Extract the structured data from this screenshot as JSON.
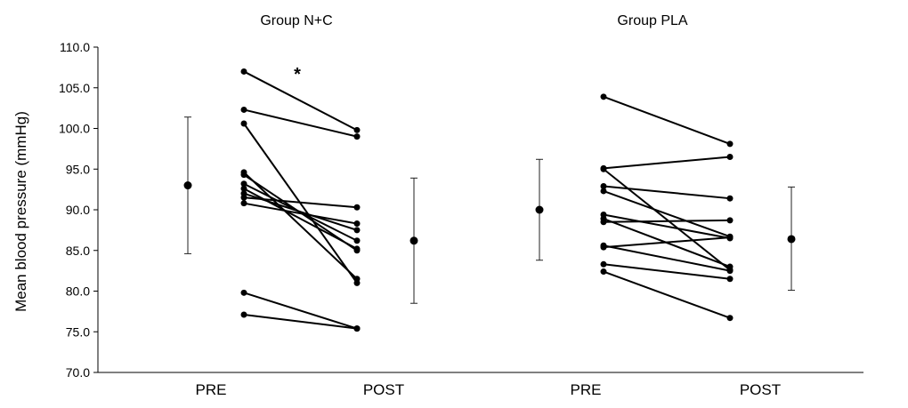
{
  "chart_data": {
    "type": "scatter",
    "subtype": "paired-individual-lines-with-mean-sd",
    "ylabel": "Mean blood pressure (mmHg)",
    "ylim": [
      70.0,
      110.0
    ],
    "yticks": [
      "70.0",
      "75.0",
      "80.0",
      "85.0",
      "90.0",
      "95.0",
      "100.0",
      "105.0",
      "110.0"
    ],
    "grid": false,
    "groups": [
      {
        "title": "Group N+C",
        "categories": [
          "PRE",
          "POST"
        ],
        "annotation": "*",
        "mean_pre": {
          "mean": 93.0,
          "upper": 101.4,
          "lower": 84.6
        },
        "mean_post": {
          "mean": 86.2,
          "upper": 93.9,
          "lower": 78.5
        },
        "subjects": [
          {
            "pre": 107.0,
            "post": 99.8
          },
          {
            "pre": 102.3,
            "post": 99.0
          },
          {
            "pre": 100.6,
            "post": 81.0
          },
          {
            "pre": 94.6,
            "post": 81.5
          },
          {
            "pre": 94.3,
            "post": 85.0
          },
          {
            "pre": 93.2,
            "post": 86.2
          },
          {
            "pre": 92.6,
            "post": 85.2
          },
          {
            "pre": 92.0,
            "post": 87.5
          },
          {
            "pre": 91.5,
            "post": 90.3
          },
          {
            "pre": 90.8,
            "post": 88.3
          },
          {
            "pre": 79.8,
            "post": 75.4
          },
          {
            "pre": 77.1,
            "post": 75.4
          }
        ]
      },
      {
        "title": "Group PLA",
        "categories": [
          "PRE",
          "POST"
        ],
        "annotation": "",
        "mean_pre": {
          "mean": 90.0,
          "upper": 96.2,
          "lower": 83.8
        },
        "mean_post": {
          "mean": 86.4,
          "upper": 92.8,
          "lower": 80.1
        },
        "subjects": [
          {
            "pre": 103.9,
            "post": 98.1
          },
          {
            "pre": 95.1,
            "post": 96.5
          },
          {
            "pre": 95.0,
            "post": 82.6
          },
          {
            "pre": 92.9,
            "post": 91.4
          },
          {
            "pre": 92.3,
            "post": 86.7
          },
          {
            "pre": 89.4,
            "post": 86.5
          },
          {
            "pre": 88.9,
            "post": 83.0
          },
          {
            "pre": 88.5,
            "post": 88.7
          },
          {
            "pre": 85.6,
            "post": 82.5
          },
          {
            "pre": 85.4,
            "post": 86.6
          },
          {
            "pre": 83.3,
            "post": 81.5
          },
          {
            "pre": 82.4,
            "post": 76.7
          }
        ]
      }
    ]
  }
}
